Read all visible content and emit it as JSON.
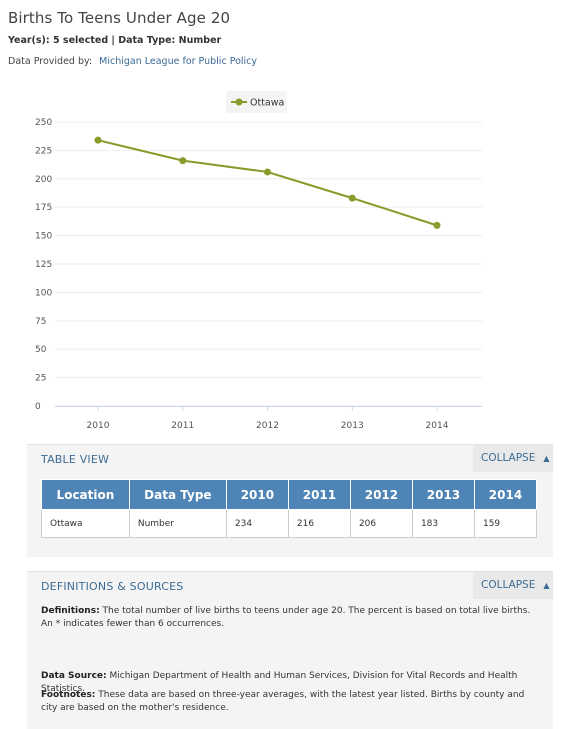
{
  "page": {
    "title": "Births To Teens Under Age 20",
    "subtitle": "Year(s): 5 selected | Data Type: Number",
    "provider_label": "Data Provided by:",
    "provider_link": "Michigan League for Public Policy"
  },
  "chart_data": {
    "type": "line",
    "x": [
      "2010",
      "2011",
      "2012",
      "2013",
      "2014"
    ],
    "series": [
      {
        "name": "Ottawa",
        "values": [
          234,
          216,
          206,
          183,
          159
        ],
        "color": "#8a9a2b"
      }
    ],
    "ylim": [
      0,
      250
    ],
    "yticks": [
      0,
      25,
      50,
      75,
      100,
      125,
      150,
      175,
      200,
      225,
      250
    ],
    "legend": "top-center",
    "grid": true
  },
  "table_view": {
    "title": "TABLE VIEW",
    "collapse_label": "COLLAPSE",
    "headers": [
      "Location",
      "Data Type",
      "2010",
      "2011",
      "2012",
      "2013",
      "2014"
    ],
    "rows": [
      [
        "Ottawa",
        "Number",
        "234",
        "216",
        "206",
        "183",
        "159"
      ]
    ]
  },
  "definitions": {
    "title": "DEFINITIONS & SOURCES",
    "collapse_label": "COLLAPSE",
    "definitions_label": "Definitions:",
    "definitions_text": "The total number of live births to teens under age 20. The percent is based on total live births. An * indicates fewer than 6 occurrences.",
    "source_label": "Data Source:",
    "source_text": "Michigan Department of Health and Human Services, Division for Vital Records and Health Statistics.",
    "footnotes_label": "Footnotes:",
    "footnotes_text": "These data are based on three-year averages, with the latest year listed. Births by county and city are based on the mother's residence."
  }
}
